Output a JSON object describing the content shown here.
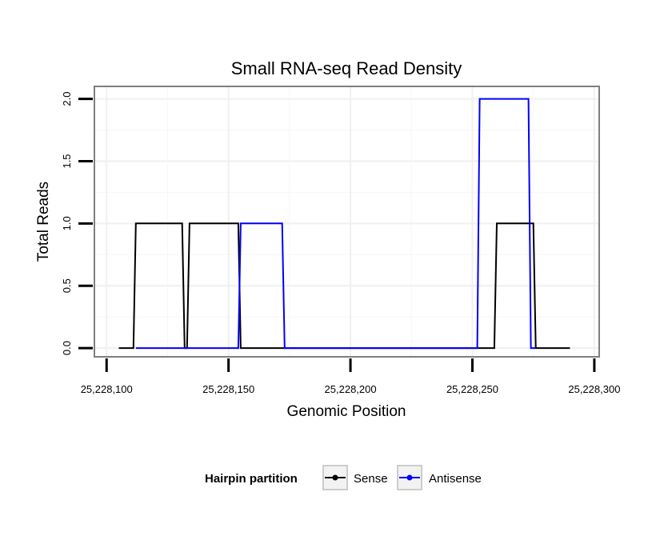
{
  "chart_data": {
    "type": "line",
    "title": "Small RNA-seq Read Density",
    "xlabel": "Genomic Position",
    "ylabel": "Total Reads",
    "xlim": [
      25228095,
      25228302
    ],
    "ylim": [
      -0.07,
      2.1
    ],
    "x_ticks": [
      25228100,
      25228150,
      25228200,
      25228250,
      25228300
    ],
    "x_tick_labels": [
      "25,228,100",
      "25,228,150",
      "25,228,200",
      "25,228,250",
      "25,228,300"
    ],
    "y_ticks": [
      0,
      0.5,
      1,
      1.5,
      2
    ],
    "y_tick_labels": [
      "0.0",
      "0.5",
      "1.0",
      "1.5",
      "2.0"
    ],
    "grid": true,
    "legend": {
      "title": "Hairpin partition",
      "placement": "bottom"
    },
    "series": [
      {
        "name": "Sense",
        "color": "#000000",
        "x": [
          25228105,
          25228111,
          25228112,
          25228131,
          25228132,
          25228133,
          25228134,
          25228154,
          25228155,
          25228259,
          25228260,
          25228275,
          25228276,
          25228290
        ],
        "y": [
          0,
          0,
          1,
          1,
          0,
          0,
          1,
          1,
          0,
          0,
          1,
          1,
          0,
          0
        ]
      },
      {
        "name": "Antisense",
        "color": "#0000ff",
        "x": [
          25228112,
          25228154,
          25228155,
          25228172,
          25228173,
          25228252,
          25228253,
          25228273,
          25228274,
          25228276
        ],
        "y": [
          0,
          0,
          1,
          1,
          0,
          0,
          2,
          2,
          0,
          0
        ]
      }
    ]
  }
}
